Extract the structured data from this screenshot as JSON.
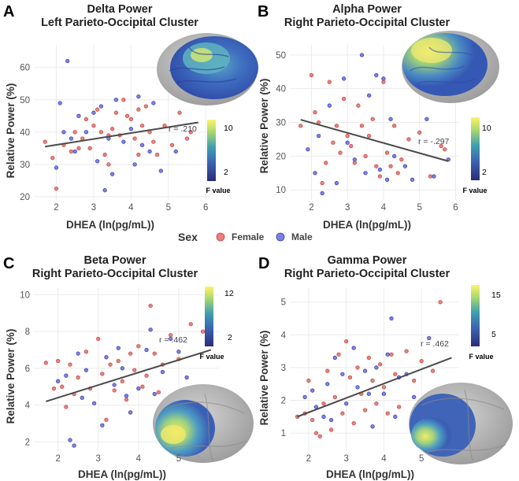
{
  "legend": {
    "title": "Sex",
    "entries": [
      {
        "label": "Female",
        "color": "#e8807c"
      },
      {
        "label": "Male",
        "color": "#7b7fe6"
      }
    ]
  },
  "colorbar_title": "F value",
  "chart_data": [
    {
      "panel": "A",
      "type": "scatter",
      "title": "Delta Power",
      "subtitle": "Left Parieto-Occipital Cluster",
      "xlabel": "DHEA (ln(pg/mL))",
      "ylabel": "Relative Power (%)",
      "xlim": [
        1.4,
        6.1
      ],
      "ylim": [
        19,
        67
      ],
      "xticks": [
        2,
        3,
        4,
        5,
        6
      ],
      "yticks": [
        20,
        30,
        40,
        50,
        60
      ],
      "grid": true,
      "correlation": "r = .210",
      "fit": {
        "x": [
          1.7,
          5.8
        ],
        "y": [
          35.5,
          43.0
        ]
      },
      "colorbar": {
        "ticks": [
          "10",
          "2"
        ]
      },
      "series": [
        {
          "name": "Female",
          "color": "#e8807c",
          "points": [
            [
              1.7,
              37
            ],
            [
              1.9,
              32
            ],
            [
              2.0,
              22.5
            ],
            [
              2.2,
              36
            ],
            [
              2.4,
              34
            ],
            [
              2.5,
              40
            ],
            [
              2.6,
              35
            ],
            [
              2.7,
              38
            ],
            [
              2.8,
              44
            ],
            [
              3.0,
              42
            ],
            [
              3.1,
              47
            ],
            [
              3.2,
              40
            ],
            [
              3.3,
              33
            ],
            [
              3.4,
              39
            ],
            [
              3.5,
              41
            ],
            [
              3.6,
              46
            ],
            [
              3.7,
              39
            ],
            [
              3.8,
              50
            ],
            [
              3.9,
              45
            ],
            [
              4.0,
              44
            ],
            [
              4.1,
              38
            ],
            [
              4.2,
              47
            ],
            [
              4.3,
              42
            ],
            [
              4.4,
              48
            ],
            [
              4.5,
              40
            ],
            [
              4.6,
              37
            ],
            [
              4.7,
              33
            ],
            [
              4.9,
              42
            ],
            [
              5.1,
              36
            ],
            [
              5.3,
              46
            ],
            [
              5.5,
              38
            ],
            [
              5.6,
              40
            ],
            [
              4.2,
              33
            ],
            [
              3.4,
              30
            ],
            [
              2.9,
              35
            ]
          ]
        },
        {
          "name": "Male",
          "color": "#7b7fe6",
          "points": [
            [
              2.0,
              29
            ],
            [
              2.1,
              49
            ],
            [
              2.3,
              62
            ],
            [
              2.4,
              38
            ],
            [
              2.5,
              34
            ],
            [
              2.6,
              45
            ],
            [
              2.8,
              40
            ],
            [
              3.0,
              46
            ],
            [
              3.1,
              31
            ],
            [
              3.2,
              48
            ],
            [
              3.3,
              22
            ],
            [
              3.4,
              38
            ],
            [
              3.5,
              27
            ],
            [
              3.6,
              50
            ],
            [
              3.8,
              37
            ],
            [
              4.0,
              41
            ],
            [
              4.1,
              30
            ],
            [
              4.2,
              51
            ],
            [
              4.3,
              36
            ],
            [
              4.5,
              34
            ],
            [
              4.6,
              49
            ],
            [
              4.8,
              28
            ],
            [
              5.2,
              34
            ],
            [
              2.2,
              40
            ]
          ]
        }
      ]
    },
    {
      "panel": "B",
      "type": "scatter",
      "title": "Alpha Power",
      "subtitle": "Right Parieto-Occipital Cluster",
      "xlabel": "DHEA (ln(pg/mL))",
      "ylabel": "Relative Power (%)",
      "xlim": [
        1.4,
        6.1
      ],
      "ylim": [
        7,
        53
      ],
      "xticks": [
        2,
        3,
        4,
        5,
        6
      ],
      "yticks": [
        10,
        20,
        30,
        40,
        50
      ],
      "grid": true,
      "correlation": "r = -.297",
      "fit": {
        "x": [
          1.7,
          5.8
        ],
        "y": [
          30.8,
          18.5
        ]
      },
      "colorbar": {
        "ticks": [
          "10",
          "2"
        ]
      },
      "series": [
        {
          "name": "Female",
          "color": "#e8807c",
          "points": [
            [
              1.7,
              29
            ],
            [
              2.0,
              44
            ],
            [
              2.1,
              33
            ],
            [
              2.2,
              30
            ],
            [
              2.4,
              18
            ],
            [
              2.5,
              42
            ],
            [
              2.6,
              24
            ],
            [
              2.7,
              29
            ],
            [
              2.8,
              21
            ],
            [
              2.9,
              37
            ],
            [
              3.0,
              26
            ],
            [
              3.1,
              23
            ],
            [
              3.2,
              18
            ],
            [
              3.3,
              35
            ],
            [
              3.4,
              29
            ],
            [
              3.5,
              20
            ],
            [
              3.6,
              26
            ],
            [
              3.7,
              31
            ],
            [
              3.8,
              17
            ],
            [
              3.9,
              14
            ],
            [
              4.0,
              42
            ],
            [
              4.1,
              21
            ],
            [
              4.2,
              17
            ],
            [
              4.3,
              29
            ],
            [
              4.4,
              15
            ],
            [
              4.5,
              19
            ],
            [
              4.7,
              25
            ],
            [
              5.0,
              27
            ],
            [
              5.3,
              14
            ],
            [
              5.6,
              23
            ],
            [
              5.7,
              22
            ],
            [
              2.3,
              12
            ]
          ]
        },
        {
          "name": "Male",
          "color": "#7b7fe6",
          "points": [
            [
              1.9,
              22
            ],
            [
              2.1,
              15
            ],
            [
              2.3,
              9
            ],
            [
              2.5,
              35
            ],
            [
              2.7,
              12
            ],
            [
              2.9,
              43
            ],
            [
              3.0,
              24
            ],
            [
              3.2,
              19
            ],
            [
              3.4,
              50
            ],
            [
              3.5,
              15
            ],
            [
              3.6,
              38
            ],
            [
              3.8,
              44
            ],
            [
              3.9,
              16
            ],
            [
              4.0,
              43
            ],
            [
              4.1,
              13
            ],
            [
              4.2,
              31
            ],
            [
              4.3,
              20
            ],
            [
              4.6,
              17
            ],
            [
              4.8,
              13
            ],
            [
              5.2,
              31
            ],
            [
              5.4,
              14
            ],
            [
              5.8,
              19
            ],
            [
              2.2,
              26
            ]
          ]
        }
      ]
    },
    {
      "panel": "C",
      "type": "scatter",
      "title": "Beta Power",
      "subtitle": "Right Parieto-Occipital Cluster",
      "xlabel": "DHEA (ln(pg/mL))",
      "ylabel": "Relative Power (%)",
      "xlim": [
        1.4,
        6.0
      ],
      "ylim": [
        1.5,
        10.4
      ],
      "xticks": [
        2,
        3,
        4,
        5
      ],
      "yticks": [
        2,
        4,
        6,
        8,
        10
      ],
      "grid": true,
      "correlation": "r = .462",
      "fit": {
        "x": [
          1.7,
          5.8
        ],
        "y": [
          4.2,
          7.0
        ]
      },
      "colorbar": {
        "ticks": [
          "12",
          "2"
        ]
      },
      "series": [
        {
          "name": "Female",
          "color": "#e8807c",
          "points": [
            [
              1.7,
              6.3
            ],
            [
              1.9,
              4.9
            ],
            [
              2.0,
              6.4
            ],
            [
              2.1,
              5.0
            ],
            [
              2.3,
              6.2
            ],
            [
              2.4,
              4.6
            ],
            [
              2.5,
              5.5
            ],
            [
              2.7,
              6.9
            ],
            [
              2.8,
              4.9
            ],
            [
              3.0,
              7.6
            ],
            [
              3.1,
              5.7
            ],
            [
              3.2,
              3.2
            ],
            [
              3.3,
              6.2
            ],
            [
              3.4,
              4.8
            ],
            [
              3.5,
              6.4
            ],
            [
              3.6,
              5.3
            ],
            [
              3.7,
              4.3
            ],
            [
              3.8,
              6.8
            ],
            [
              3.9,
              5.9
            ],
            [
              4.0,
              7.2
            ],
            [
              4.1,
              5.0
            ],
            [
              4.2,
              5.6
            ],
            [
              4.3,
              9.4
            ],
            [
              4.4,
              6.8
            ],
            [
              4.6,
              6.2
            ],
            [
              4.8,
              7.8
            ],
            [
              5.0,
              6.5
            ],
            [
              5.3,
              8.4
            ],
            [
              5.6,
              8.0
            ],
            [
              5.8,
              9.7
            ],
            [
              2.2,
              3.9
            ],
            [
              4.5,
              4.7
            ]
          ]
        },
        {
          "name": "Male",
          "color": "#7b7fe6",
          "points": [
            [
              2.0,
              5.3
            ],
            [
              2.2,
              5.6
            ],
            [
              2.3,
              2.1
            ],
            [
              2.4,
              1.8
            ],
            [
              2.5,
              6.8
            ],
            [
              2.7,
              5.9
            ],
            [
              2.9,
              4.1
            ],
            [
              3.1,
              2.9
            ],
            [
              3.2,
              6.6
            ],
            [
              3.4,
              5.1
            ],
            [
              3.5,
              7.1
            ],
            [
              3.6,
              6.0
            ],
            [
              3.7,
              4.5
            ],
            [
              3.8,
              3.6
            ],
            [
              4.0,
              4.9
            ],
            [
              4.2,
              7.0
            ],
            [
              4.3,
              8.1
            ],
            [
              4.4,
              4.6
            ],
            [
              4.6,
              5.8
            ],
            [
              4.8,
              7.6
            ],
            [
              5.0,
              6.9
            ],
            [
              5.2,
              5.5
            ],
            [
              2.6,
              4.4
            ]
          ]
        }
      ]
    },
    {
      "panel": "D",
      "type": "scatter",
      "title": "Gamma Power",
      "subtitle": "Right Parieto-Occipital Cluster",
      "xlabel": "DHEA (ln(pg/mL))",
      "ylabel": "Relative Power (%)",
      "xlim": [
        1.5,
        6.0
      ],
      "ylim": [
        0.45,
        5.45
      ],
      "xticks": [
        2,
        3,
        4,
        5
      ],
      "yticks": [
        1,
        2,
        3,
        4,
        5
      ],
      "grid": true,
      "correlation": "r = .462",
      "fit": {
        "x": [
          1.7,
          5.8
        ],
        "y": [
          1.5,
          3.3
        ]
      },
      "colorbar": {
        "ticks": [
          "15",
          "5"
        ]
      },
      "series": [
        {
          "name": "Female",
          "color": "#e8807c",
          "points": [
            [
              1.7,
              1.5
            ],
            [
              1.9,
              1.6
            ],
            [
              2.0,
              2.6
            ],
            [
              2.1,
              1.4
            ],
            [
              2.2,
              1.0
            ],
            [
              2.3,
              0.9
            ],
            [
              2.4,
              1.9
            ],
            [
              2.5,
              2.9
            ],
            [
              2.6,
              1.1
            ],
            [
              2.7,
              2.1
            ],
            [
              2.8,
              3.4
            ],
            [
              2.9,
              1.6
            ],
            [
              3.0,
              3.8
            ],
            [
              3.1,
              2.7
            ],
            [
              3.2,
              1.3
            ],
            [
              3.3,
              3.0
            ],
            [
              3.4,
              2.2
            ],
            [
              3.5,
              1.7
            ],
            [
              3.6,
              3.3
            ],
            [
              3.7,
              2.6
            ],
            [
              3.8,
              1.9
            ],
            [
              3.9,
              3.1
            ],
            [
              4.0,
              2.4
            ],
            [
              4.1,
              1.6
            ],
            [
              4.2,
              3.4
            ],
            [
              4.3,
              2.8
            ],
            [
              4.4,
              1.8
            ],
            [
              4.6,
              3.5
            ],
            [
              4.8,
              2.6
            ],
            [
              5.0,
              3.2
            ],
            [
              5.3,
              2.9
            ],
            [
              5.5,
              5.0
            ],
            [
              5.7,
              2.1
            ]
          ]
        },
        {
          "name": "Male",
          "color": "#7b7fe6",
          "points": [
            [
              1.9,
              2.1
            ],
            [
              2.1,
              2.3
            ],
            [
              2.2,
              1.8
            ],
            [
              2.4,
              1.5
            ],
            [
              2.5,
              2.5
            ],
            [
              2.7,
              3.3
            ],
            [
              2.9,
              2.8
            ],
            [
              3.0,
              1.9
            ],
            [
              3.2,
              3.6
            ],
            [
              3.3,
              2.4
            ],
            [
              3.5,
              2.9
            ],
            [
              3.6,
              2.2
            ],
            [
              3.7,
              1.2
            ],
            [
              3.8,
              3.0
            ],
            [
              4.0,
              2.2
            ],
            [
              4.1,
              3.4
            ],
            [
              4.2,
              4.5
            ],
            [
              4.3,
              1.5
            ],
            [
              4.4,
              2.7
            ],
            [
              4.6,
              2.8
            ],
            [
              4.8,
              2.1
            ],
            [
              5.2,
              3.9
            ],
            [
              2.6,
              1.4
            ]
          ]
        }
      ]
    }
  ]
}
